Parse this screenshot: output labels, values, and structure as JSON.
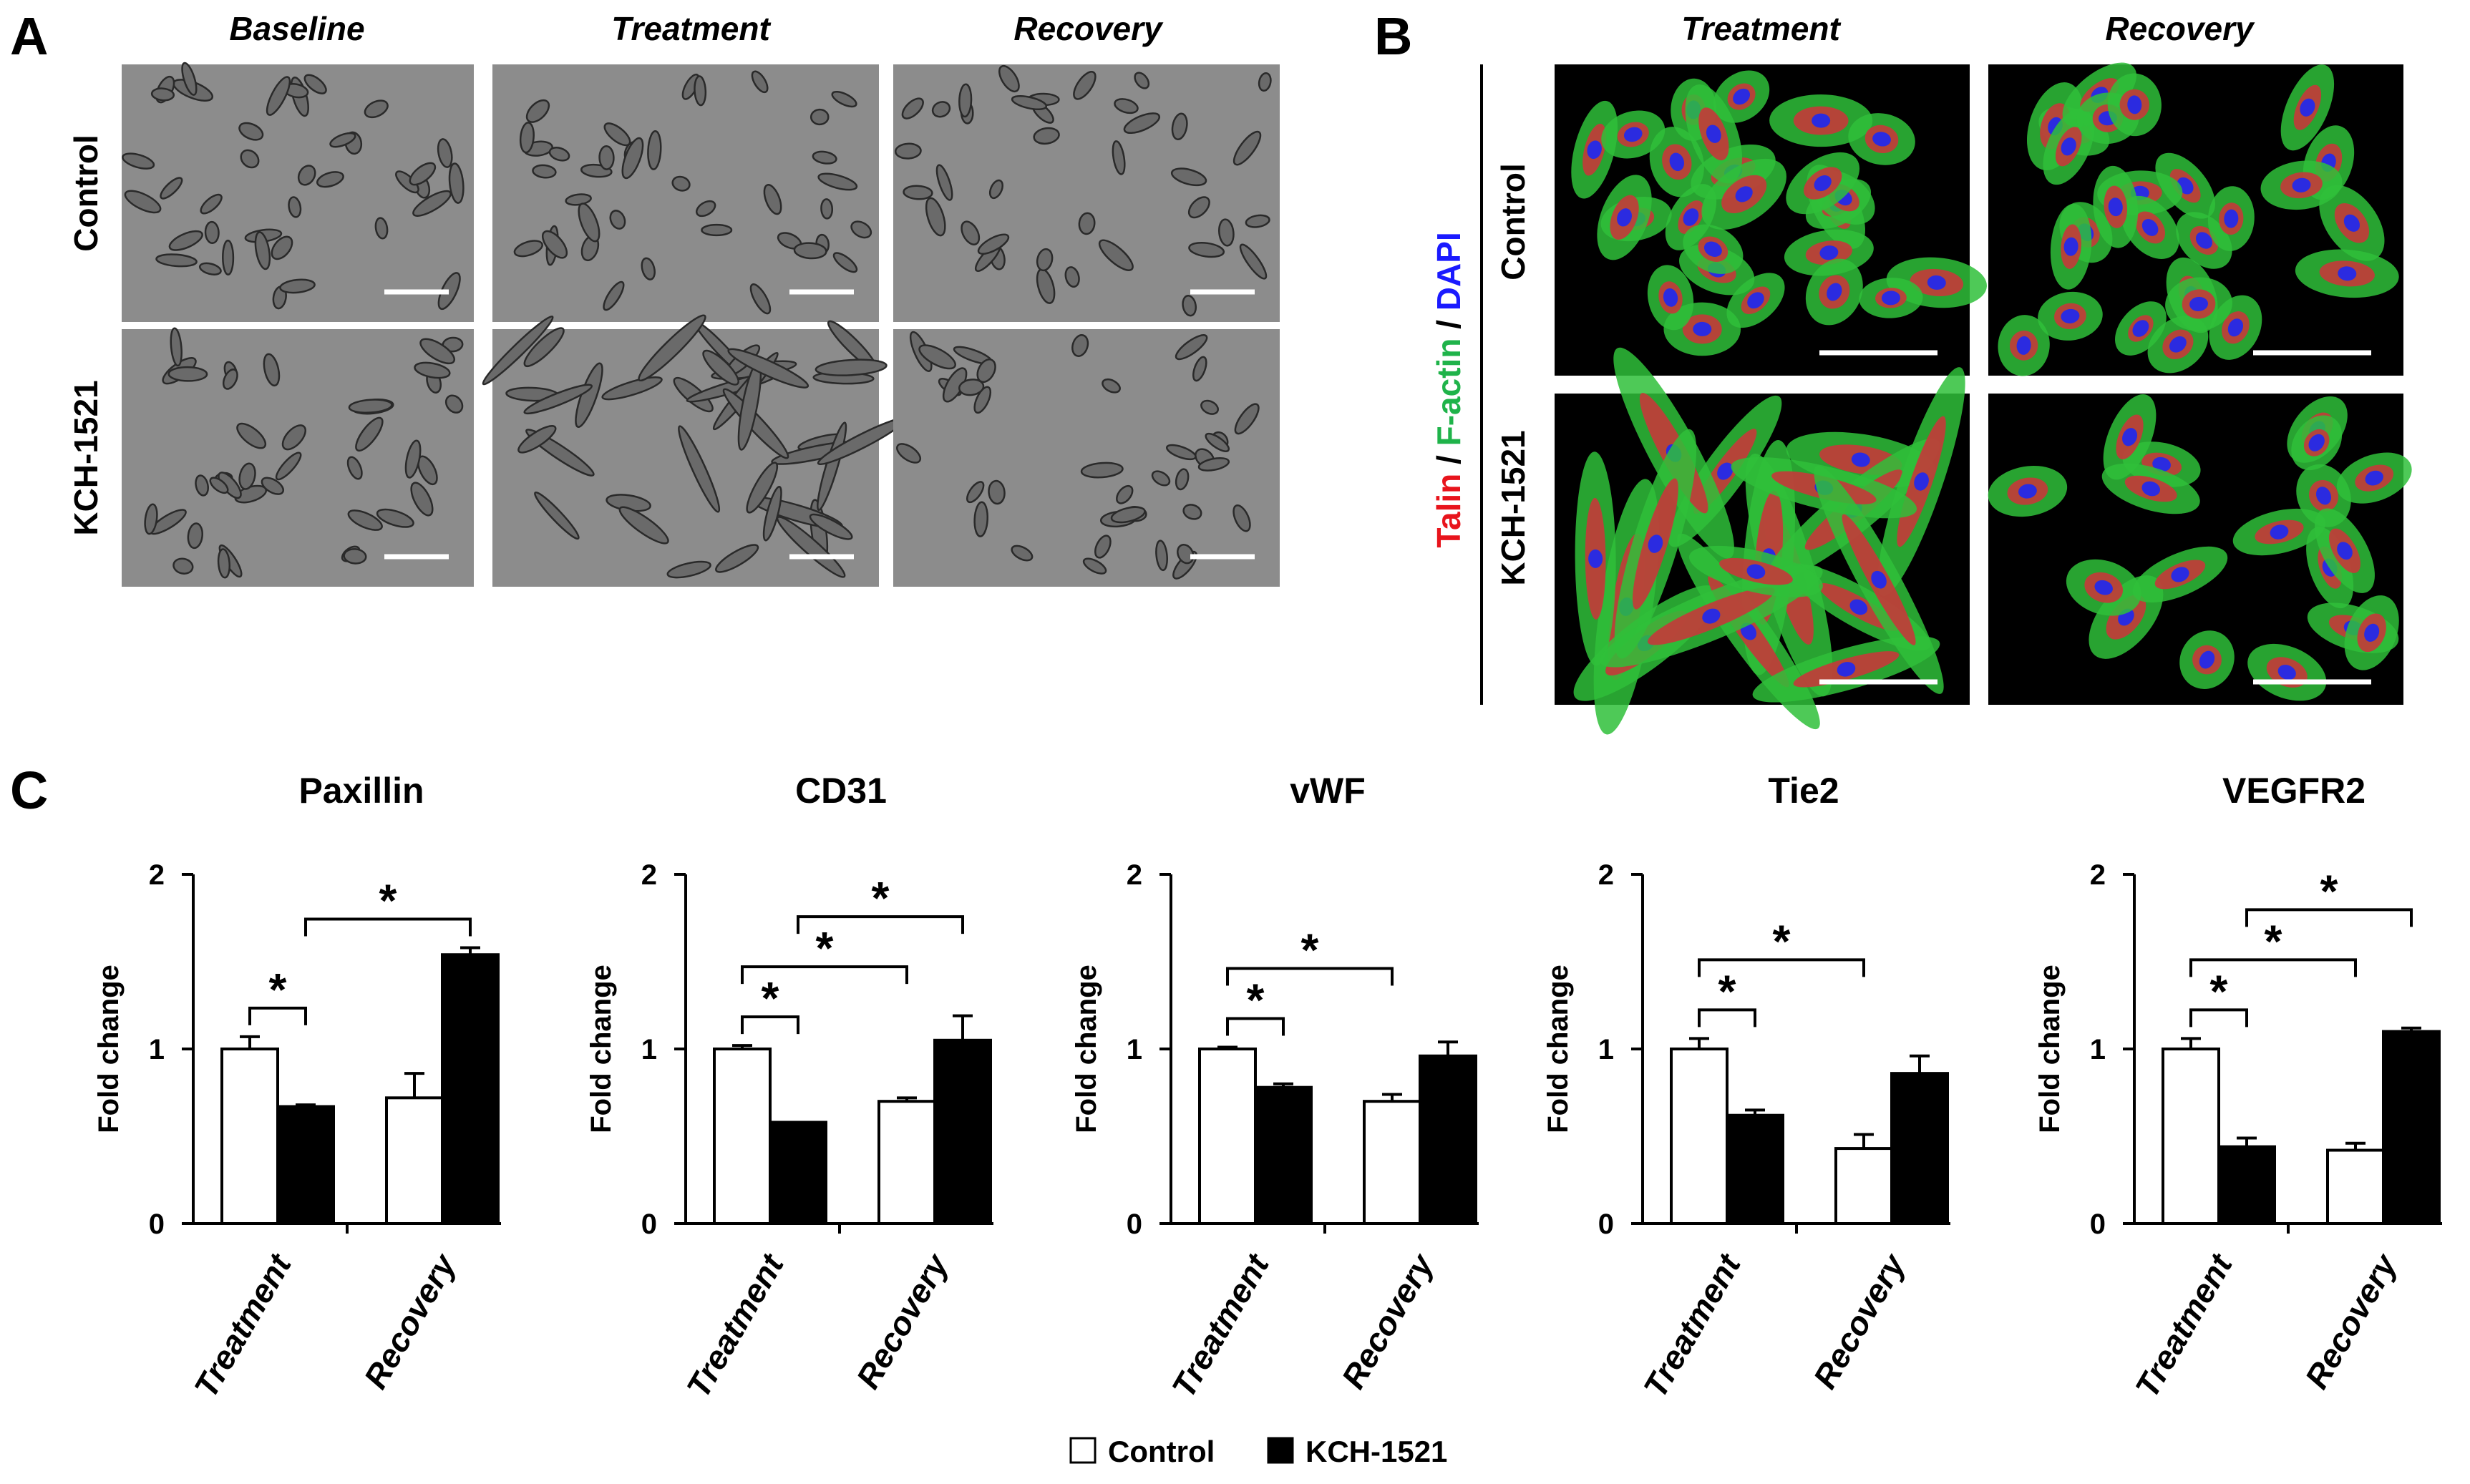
{
  "figure": {
    "panel_letters": [
      "A",
      "B",
      "C"
    ],
    "panelA": {
      "columns": [
        "Baseline",
        "Treatment",
        "Recovery"
      ],
      "rows": [
        "Control",
        "KCH-1521"
      ]
    },
    "panelB": {
      "columns": [
        "Treatment",
        "Recovery"
      ],
      "rows": [
        "Control",
        "KCH-1521"
      ],
      "stain_label": [
        {
          "text": "Talin",
          "color": "#e8141c"
        },
        {
          "text": " / ",
          "color": "#000000"
        },
        {
          "text": "F-actin",
          "color": "#1fb34a"
        },
        {
          "text": " / ",
          "color": "#000000"
        },
        {
          "text": "DAPI",
          "color": "#1a1aff"
        }
      ]
    },
    "legend": [
      {
        "label": "Control",
        "fill": "#ffffff"
      },
      {
        "label": "KCH-1521",
        "fill": "#000000"
      }
    ],
    "colors": {
      "control_bar": "#ffffff",
      "treated_bar": "#000000",
      "phase_contrast_bg": "#8c8c8c",
      "fluorescence_bg": "#000000",
      "actin": "#2fbf3a",
      "talin": "#c43a3a",
      "nucleus": "#2b2be0"
    }
  },
  "chart_data": [
    {
      "type": "bar",
      "title": "Paxillin",
      "ylabel": "Fold change",
      "ylim": [
        0,
        2
      ],
      "yticks": [
        "0",
        "1",
        "2"
      ],
      "categories": [
        "Treatment",
        "Recovery"
      ],
      "series": [
        {
          "name": "Control",
          "values": [
            1.0,
            0.72
          ],
          "errors": [
            0.07,
            0.14
          ]
        },
        {
          "name": "KCH-1521",
          "values": [
            0.67,
            1.54
          ],
          "errors": [
            0.01,
            0.04
          ]
        }
      ],
      "significance": [
        {
          "from": [
            0,
            0
          ],
          "to": [
            0,
            1
          ],
          "label": "*"
        },
        {
          "from": [
            0,
            1
          ],
          "to": [
            1,
            1
          ],
          "label": "*"
        }
      ]
    },
    {
      "type": "bar",
      "title": "CD31",
      "ylabel": "Fold change",
      "ylim": [
        0,
        2
      ],
      "yticks": [
        "0",
        "1",
        "2"
      ],
      "categories": [
        "Treatment",
        "Recovery"
      ],
      "series": [
        {
          "name": "Control",
          "values": [
            1.0,
            0.7
          ],
          "errors": [
            0.02,
            0.02
          ]
        },
        {
          "name": "KCH-1521",
          "values": [
            0.58,
            1.05
          ],
          "errors": [
            0.0,
            0.14
          ]
        }
      ],
      "significance": [
        {
          "from": [
            0,
            0
          ],
          "to": [
            0,
            1
          ],
          "label": "*"
        },
        {
          "from": [
            0,
            0
          ],
          "to": [
            1,
            0
          ],
          "label": "*"
        },
        {
          "from": [
            0,
            1
          ],
          "to": [
            1,
            1
          ],
          "label": "*"
        }
      ]
    },
    {
      "type": "bar",
      "title": "vWF",
      "ylabel": "Fold change",
      "ylim": [
        0,
        2
      ],
      "yticks": [
        "0",
        "1",
        "2"
      ],
      "categories": [
        "Treatment",
        "Recovery"
      ],
      "series": [
        {
          "name": "Control",
          "values": [
            1.0,
            0.7
          ],
          "errors": [
            0.01,
            0.04
          ]
        },
        {
          "name": "KCH-1521",
          "values": [
            0.78,
            0.96
          ],
          "errors": [
            0.02,
            0.08
          ]
        }
      ],
      "significance": [
        {
          "from": [
            0,
            0
          ],
          "to": [
            0,
            1
          ],
          "label": "*"
        },
        {
          "from": [
            0,
            0
          ],
          "to": [
            1,
            0
          ],
          "label": "*"
        }
      ]
    },
    {
      "type": "bar",
      "title": "Tie2",
      "ylabel": "Fold change",
      "ylim": [
        0,
        2
      ],
      "yticks": [
        "0",
        "1",
        "2"
      ],
      "categories": [
        "Treatment",
        "Recovery"
      ],
      "series": [
        {
          "name": "Control",
          "values": [
            1.0,
            0.43
          ],
          "errors": [
            0.06,
            0.08
          ]
        },
        {
          "name": "KCH-1521",
          "values": [
            0.62,
            0.86
          ],
          "errors": [
            0.03,
            0.1
          ]
        }
      ],
      "significance": [
        {
          "from": [
            0,
            0
          ],
          "to": [
            0,
            1
          ],
          "label": "*"
        },
        {
          "from": [
            0,
            0
          ],
          "to": [
            1,
            0
          ],
          "label": "*"
        }
      ]
    },
    {
      "type": "bar",
      "title": "VEGFR2",
      "ylabel": "Fold change",
      "ylim": [
        0,
        2
      ],
      "yticks": [
        "0",
        "1",
        "2"
      ],
      "categories": [
        "Treatment",
        "Recovery"
      ],
      "series": [
        {
          "name": "Control",
          "values": [
            1.0,
            0.42
          ],
          "errors": [
            0.06,
            0.04
          ]
        },
        {
          "name": "KCH-1521",
          "values": [
            0.44,
            1.1
          ],
          "errors": [
            0.05,
            0.02
          ]
        }
      ],
      "significance": [
        {
          "from": [
            0,
            0
          ],
          "to": [
            0,
            1
          ],
          "label": "*"
        },
        {
          "from": [
            0,
            0
          ],
          "to": [
            1,
            0
          ],
          "label": "*"
        },
        {
          "from": [
            0,
            1
          ],
          "to": [
            1,
            1
          ],
          "label": "*"
        }
      ]
    }
  ]
}
